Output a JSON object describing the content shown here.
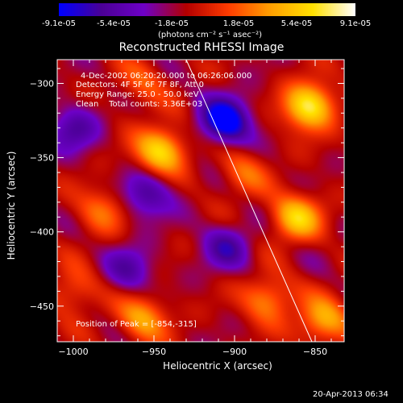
{
  "colorbar": {
    "tick_labels": [
      "-9.1e-05",
      "-5.4e-05",
      "-1.8e-05",
      "1.8e-05",
      "5.4e-05",
      "9.1e-05"
    ],
    "units": "(photons cm⁻² s⁻¹ asec⁻²)",
    "colors": [
      "#0000ff",
      "#4b0096",
      "#6e00c8",
      "#b40000",
      "#ff3c00",
      "#ffa000",
      "#ffe100",
      "#ffffff"
    ]
  },
  "chart_data": {
    "type": "heatmap",
    "title": "Reconstructed RHESSI Image",
    "xlabel": "Heliocentric X (arcsec)",
    "ylabel": "Heliocentric Y (arcsec)",
    "xlim": [
      -1010,
      -832
    ],
    "ylim": [
      -474,
      -284
    ],
    "x_ticks": [
      -1000,
      -950,
      -900,
      -850
    ],
    "y_ticks": [
      -300,
      -350,
      -400,
      -450
    ],
    "x_tick_labels": [
      "−1000",
      "−950",
      "−900",
      "−850"
    ],
    "y_tick_labels": [
      "−300",
      "−350",
      "−400",
      "−450"
    ],
    "value_range": [
      -9.1e-05,
      9.1e-05
    ],
    "limb_line": [
      [
        -930,
        -284
      ],
      [
        -852,
        -474
      ]
    ],
    "bright_sources": [
      {
        "x": -854,
        "y": -315,
        "value": 9.1e-05
      },
      {
        "x": -946,
        "y": -345,
        "value": 8e-05
      },
      {
        "x": -862,
        "y": -390,
        "value": 7e-05
      },
      {
        "x": -983,
        "y": -385,
        "value": 4e-05
      },
      {
        "x": -957,
        "y": -458,
        "value": 5.5e-05
      },
      {
        "x": -880,
        "y": -445,
        "value": 5e-05
      },
      {
        "x": -845,
        "y": -460,
        "value": 6e-05
      },
      {
        "x": -1000,
        "y": -440,
        "value": 3.5e-05
      },
      {
        "x": -958,
        "y": -300,
        "value": 3e-05
      },
      {
        "x": -895,
        "y": -360,
        "value": 3.5e-05
      }
    ],
    "dark_sources": [
      {
        "x": -906,
        "y": -325,
        "value": -9e-05
      },
      {
        "x": -955,
        "y": -375,
        "value": -5e-05
      },
      {
        "x": -1000,
        "y": -330,
        "value": -4.5e-05
      },
      {
        "x": -965,
        "y": -425,
        "value": -4e-05
      },
      {
        "x": -905,
        "y": -410,
        "value": -4.5e-05
      }
    ]
  },
  "annotations": {
    "time_range": "4-Dec-2002 06:20:20.000 to 06:26:06.000",
    "detectors": "Detectors: 4F 5F 6F 7F 8F, Att 0",
    "energy": "Energy Range: 25.0 - 50.0 keV",
    "clean": "Clean    Total counts: 3.36E+03",
    "peak": "Position of Peak = [-854,-315]"
  },
  "timestamp": "20-Apr-2013 06:34"
}
